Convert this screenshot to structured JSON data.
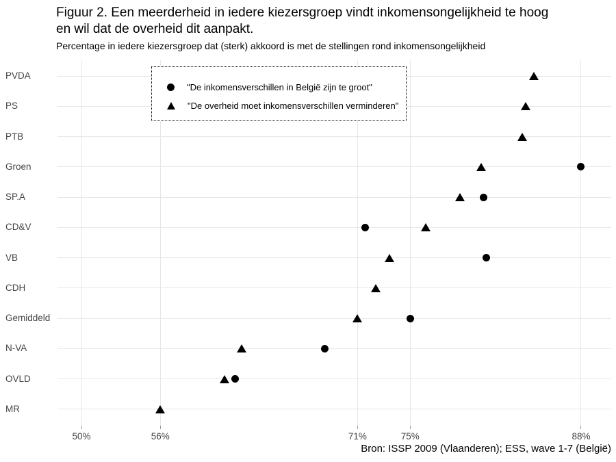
{
  "title": {
    "line1": "Figuur 2. Een meerderheid in iedere kiezersgroep vindt inkomensongelijkheid te hoog",
    "line2": "en wil dat de overheid dit aanpakt."
  },
  "subtitle": "Percentage in iedere kiezersgroep dat (sterk) akkoord is met de stellingen rond inkomensongelijkheid",
  "source": "Bron: ISSP 2009 (Vlaanderen); ESS, wave 1-7 (België)",
  "legend": {
    "entries": [
      {
        "marker": "circle-icon",
        "label": "\"De inkomensverschillen in België zijn te groot\""
      },
      {
        "marker": "triangle-icon",
        "label": "\"De overheid moet inkomensverschillen verminderen\""
      }
    ]
  },
  "chart_data": {
    "type": "scatter",
    "orientation": "horizontal dot plot",
    "categories": [
      "PVDA",
      "PS",
      "PTB",
      "Groen",
      "SP.A",
      "CD&V",
      "VB",
      "CDH",
      "Gemiddeld",
      "N-VA",
      "OVLD",
      "MR"
    ],
    "series": [
      {
        "name": "\"De inkomensverschillen in België zijn te groot\"",
        "marker": "circle",
        "values": [
          null,
          null,
          null,
          88.0,
          80.6,
          71.6,
          80.8,
          null,
          75.0,
          68.5,
          61.7,
          null
        ]
      },
      {
        "name": "\"De overheid moet inkomensverschillen verminderen\"",
        "marker": "triangle",
        "values": [
          84.4,
          83.8,
          83.5,
          80.4,
          78.8,
          76.2,
          73.4,
          72.4,
          71.0,
          62.2,
          60.9,
          56.0
        ]
      }
    ],
    "x_ticks": [
      50,
      56,
      71,
      75,
      88
    ],
    "x_tick_labels": [
      "50%",
      "56%",
      "71%",
      "75%",
      "88%"
    ],
    "xlim": [
      48.2,
      90.3
    ],
    "xlabel": "",
    "ylabel": "",
    "grid": true,
    "legend_position": "top-left inside panel, dotted border",
    "colors": {
      "marker": "#000000",
      "gridline": "#e7e7e7",
      "axis_text": "#444444",
      "text": "#000000"
    }
  }
}
